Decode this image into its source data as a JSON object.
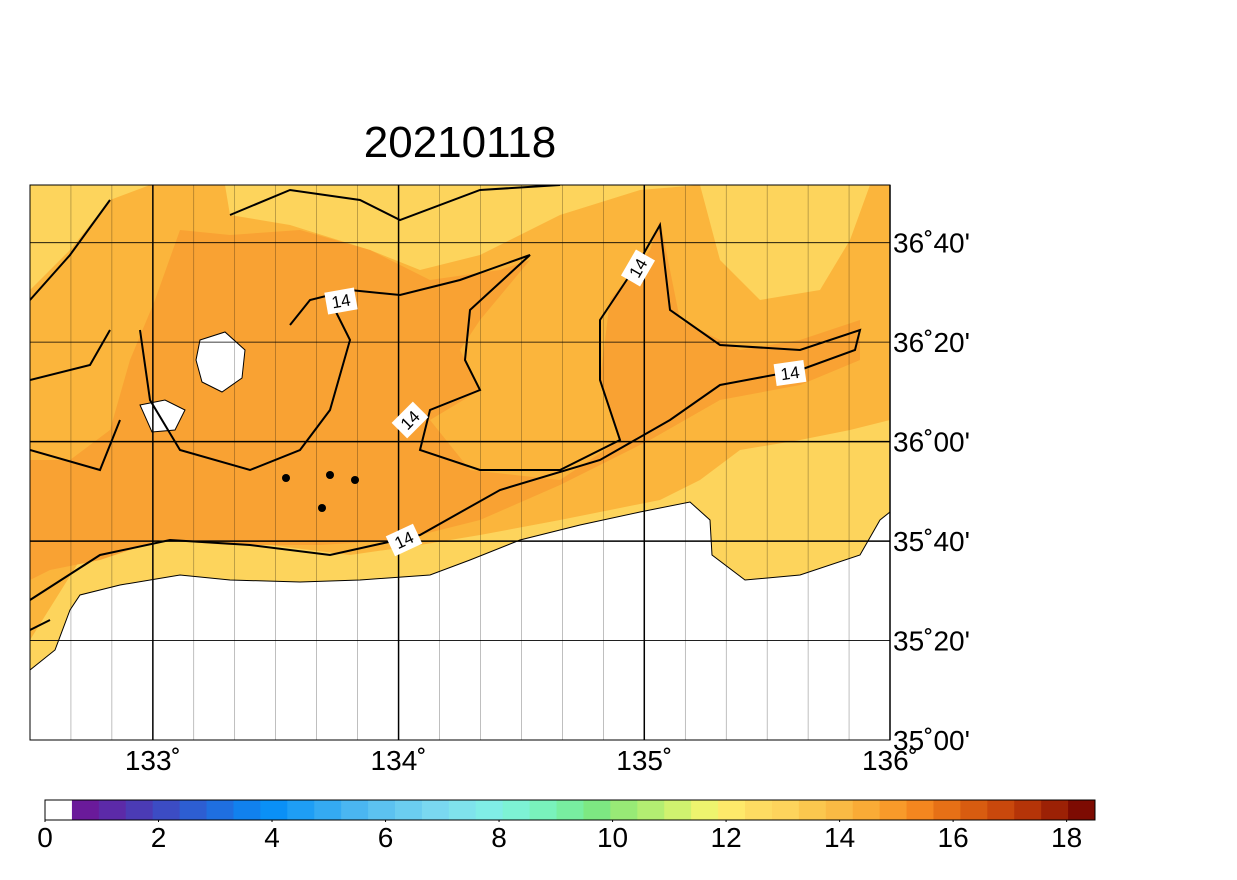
{
  "map": {
    "title": "20210118",
    "xlim": [
      132.5,
      136
    ],
    "ylim": [
      35,
      36.86
    ],
    "xticks": [
      {
        "value": 133,
        "label": "133˚"
      },
      {
        "value": 134,
        "label": "134˚"
      },
      {
        "value": 135,
        "label": "135˚"
      },
      {
        "value": 136,
        "label": "136˚"
      }
    ],
    "yticks": [
      {
        "value": 35,
        "label": "35˚00'"
      },
      {
        "value": 35.3333,
        "label": "35˚20'"
      },
      {
        "value": 35.6667,
        "label": "35˚40'"
      },
      {
        "value": 36,
        "label": "36˚00'"
      },
      {
        "value": 36.3333,
        "label": "36˚20'"
      },
      {
        "value": 36.6667,
        "label": "36˚40'"
      }
    ],
    "contour_labels": [
      "14",
      "14",
      "14",
      "14",
      "14"
    ]
  },
  "colorbar": {
    "lim": [
      0,
      18.5
    ],
    "ticks": [
      0,
      2,
      4,
      6,
      8,
      10,
      12,
      14,
      16,
      18
    ],
    "colors": [
      "#ffffff",
      "#6a1a9a",
      "#5c2aa8",
      "#4b3bb5",
      "#3c4cc4",
      "#2d5ed2",
      "#1f6fe0",
      "#1181ee",
      "#0a90f6",
      "#1e9ef5",
      "#34aaf3",
      "#4ab6f1",
      "#5cc2f0",
      "#6bcdf0",
      "#7ad8f0",
      "#7fe3ec",
      "#80ede6",
      "#7df2d4",
      "#79f2bc",
      "#78eea0",
      "#7de882",
      "#98ea76",
      "#b3ee72",
      "#d0f26f",
      "#eef46e",
      "#fee96a",
      "#fddc62",
      "#fdd45c",
      "#fbc74e",
      "#faba44",
      "#f9ab36",
      "#f89a2a",
      "#f4861f",
      "#e67016",
      "#d85c10",
      "#c9480c",
      "#b53408",
      "#9c2105",
      "#7d0b02"
    ]
  }
}
